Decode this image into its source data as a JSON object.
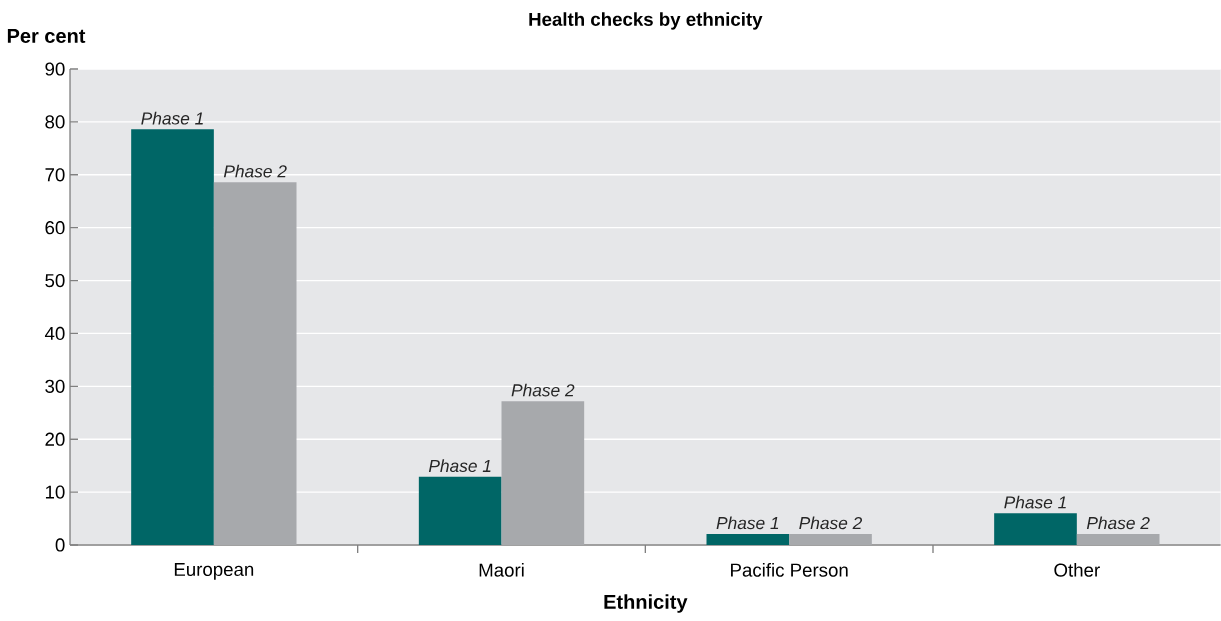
{
  "chart_data": {
    "type": "bar",
    "title": "Health checks by ethnicity",
    "xlabel": "Ethnicity",
    "ylabel": "Per cent",
    "categories": [
      "European",
      "Maori",
      "Pacific Person",
      "Other"
    ],
    "series": [
      {
        "name": "Phase 1",
        "color": "#006666",
        "values": [
          78.6,
          12.9,
          2.1,
          6.0
        ]
      },
      {
        "name": "Phase 2",
        "color": "#a7a9ac",
        "values": [
          68.6,
          27.2,
          2.1,
          2.1
        ]
      }
    ],
    "ylim": [
      0,
      90
    ],
    "yticks": [
      0,
      10,
      20,
      30,
      40,
      50,
      60,
      70,
      80,
      90
    ],
    "grid": "y",
    "legend": false
  }
}
